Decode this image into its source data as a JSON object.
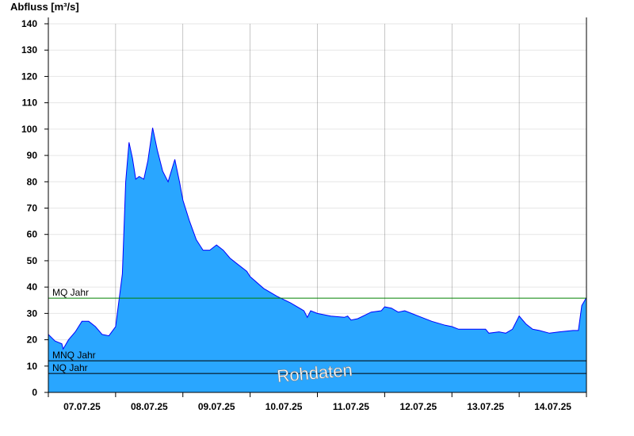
{
  "chart_data": {
    "type": "area",
    "ylabel": "Abfluss [m³/s]",
    "ylim": [
      0,
      140
    ],
    "yticks": [
      0,
      10,
      20,
      30,
      40,
      50,
      60,
      70,
      80,
      90,
      100,
      110,
      120,
      130,
      140
    ],
    "xlim_days": [
      0,
      8
    ],
    "x_labels": [
      "07.07.25",
      "08.07.25",
      "09.07.25",
      "10.07.25",
      "11.07.25",
      "12.07.25",
      "13.07.25",
      "14.07.25"
    ],
    "grid": true,
    "series": [
      {
        "color": "#29a6ff",
        "line_color": "#0000ff",
        "points": [
          [
            0.0,
            22
          ],
          [
            0.1,
            19.5
          ],
          [
            0.2,
            18.5
          ],
          [
            0.22,
            16.5
          ],
          [
            0.3,
            20
          ],
          [
            0.4,
            23
          ],
          [
            0.5,
            27
          ],
          [
            0.6,
            27
          ],
          [
            0.7,
            25
          ],
          [
            0.8,
            22
          ],
          [
            0.9,
            21.5
          ],
          [
            1.0,
            25
          ],
          [
            1.1,
            45
          ],
          [
            1.15,
            80
          ],
          [
            1.2,
            95
          ],
          [
            1.25,
            89
          ],
          [
            1.3,
            81
          ],
          [
            1.35,
            82
          ],
          [
            1.42,
            81
          ],
          [
            1.48,
            88
          ],
          [
            1.55,
            100.5
          ],
          [
            1.62,
            92
          ],
          [
            1.7,
            84
          ],
          [
            1.78,
            80
          ],
          [
            1.88,
            88.5
          ],
          [
            1.95,
            80
          ],
          [
            2.0,
            73
          ],
          [
            2.1,
            65
          ],
          [
            2.2,
            58
          ],
          [
            2.3,
            54
          ],
          [
            2.4,
            54
          ],
          [
            2.5,
            56
          ],
          [
            2.6,
            54
          ],
          [
            2.7,
            51
          ],
          [
            2.8,
            49
          ],
          [
            2.95,
            46
          ],
          [
            3.0,
            44
          ],
          [
            3.2,
            39.5
          ],
          [
            3.4,
            36.5
          ],
          [
            3.6,
            34
          ],
          [
            3.8,
            31
          ],
          [
            3.85,
            28.5
          ],
          [
            3.9,
            31
          ],
          [
            4.0,
            30
          ],
          [
            4.2,
            29
          ],
          [
            4.4,
            28.5
          ],
          [
            4.45,
            29
          ],
          [
            4.5,
            27.5
          ],
          [
            4.6,
            28
          ],
          [
            4.8,
            30.5
          ],
          [
            4.95,
            31
          ],
          [
            5.0,
            32.5
          ],
          [
            5.1,
            32
          ],
          [
            5.2,
            30.5
          ],
          [
            5.3,
            31
          ],
          [
            5.4,
            30
          ],
          [
            5.5,
            29
          ],
          [
            5.7,
            27
          ],
          [
            5.9,
            25.5
          ],
          [
            6.0,
            25
          ],
          [
            6.1,
            24
          ],
          [
            6.3,
            24
          ],
          [
            6.5,
            24
          ],
          [
            6.55,
            22.5
          ],
          [
            6.7,
            23
          ],
          [
            6.8,
            22.5
          ],
          [
            6.9,
            24
          ],
          [
            7.0,
            29
          ],
          [
            7.1,
            26
          ],
          [
            7.2,
            24
          ],
          [
            7.3,
            23.5
          ],
          [
            7.45,
            22.5
          ],
          [
            7.6,
            23
          ],
          [
            7.8,
            23.5
          ],
          [
            7.88,
            23.5
          ],
          [
            7.93,
            33
          ],
          [
            8.0,
            36
          ]
        ]
      }
    ],
    "reference_lines": [
      {
        "label": "MQ Jahr",
        "value": 35.8,
        "color": "#008000"
      },
      {
        "label": "MNQ Jahr",
        "value": 12,
        "color": "#000000"
      },
      {
        "label": "NQ Jahr",
        "value": 7.2,
        "color": "#000000"
      }
    ],
    "watermark": "Rohdaten"
  }
}
